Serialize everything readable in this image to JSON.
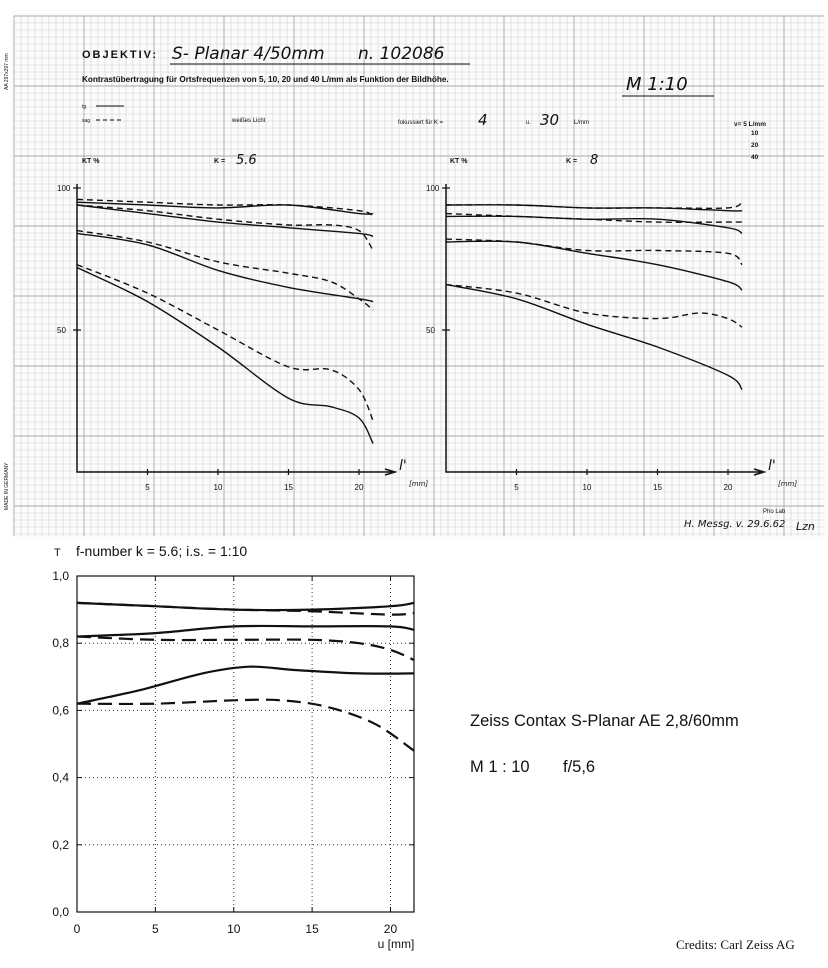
{
  "chart_data": [
    {
      "type": "line",
      "title": "OBJEKTIV:",
      "lens": "S- Planar 4/50mm",
      "serial": "n. 102086",
      "subtitle": "Kontrastübertragung für Ortsfrequenzen von 5, 10, 20 und 40 L/mm als Funktion der Bildhöhe.",
      "scale": "M 1:10",
      "legend": {
        "tg": "tg",
        "sag": "sag"
      },
      "light": "weißes Licht",
      "focus_label": "fokussiert für K =",
      "focus_k": "4",
      "focus_u": "u.",
      "focus_freq": "30",
      "focus_unit": "L/mm",
      "freq_header": "ν= 5 L/mm",
      "freq_values": [
        "10",
        "20",
        "40"
      ],
      "footer_lab": "Pho Lab",
      "footer_note": "H. Messg. v. 29.6.62",
      "signature": "Lzn",
      "panels": [
        {
          "ylabel": "KT %",
          "k_label": "K =",
          "k_value": "5.6",
          "xlabel": "l'",
          "xunit": "[mm]",
          "xlim": [
            0,
            21.5
          ],
          "ylim": [
            0,
            100
          ],
          "xticks": [
            5,
            10,
            15,
            20
          ],
          "yticks": [
            50,
            100
          ],
          "series": [
            {
              "style": "solid",
              "x": [
                0,
                5,
                10,
                15,
                20,
                21
              ],
              "y": [
                95,
                94,
                93,
                94,
                91,
                91
              ]
            },
            {
              "style": "dashed",
              "x": [
                0,
                5,
                10,
                15,
                20,
                21
              ],
              "y": [
                96,
                95,
                94,
                94,
                92,
                90
              ]
            },
            {
              "style": "solid",
              "x": [
                0,
                5,
                10,
                15,
                20,
                21
              ],
              "y": [
                94,
                91,
                88,
                86,
                84,
                83
              ]
            },
            {
              "style": "dashed",
              "x": [
                0,
                5,
                10,
                15,
                18,
                20,
                21
              ],
              "y": [
                94,
                92,
                89,
                87,
                87,
                85,
                78
              ]
            },
            {
              "style": "solid",
              "x": [
                0,
                5,
                10,
                15,
                20,
                21
              ],
              "y": [
                84,
                80,
                71,
                65,
                61,
                60
              ]
            },
            {
              "style": "dashed",
              "x": [
                0,
                5,
                10,
                15,
                18,
                20,
                21
              ],
              "y": [
                85,
                81,
                74,
                70,
                67,
                61,
                57
              ]
            },
            {
              "style": "solid",
              "x": [
                0,
                5,
                10,
                15,
                18,
                20,
                21
              ],
              "y": [
                72,
                60,
                44,
                26,
                23,
                19,
                10
              ]
            },
            {
              "style": "dashed",
              "x": [
                0,
                5,
                10,
                15,
                18,
                20,
                21
              ],
              "y": [
                73,
                63,
                50,
                37,
                36,
                29,
                18
              ]
            }
          ]
        },
        {
          "ylabel": "KT %",
          "k_label": "K =",
          "k_value": "8",
          "xlabel": "l'",
          "xunit": "[mm]",
          "xlim": [
            0,
            21.5
          ],
          "ylim": [
            0,
            100
          ],
          "xticks": [
            5,
            10,
            15,
            20
          ],
          "yticks": [
            50,
            100
          ],
          "series": [
            {
              "style": "solid",
              "x": [
                0,
                5,
                10,
                15,
                20,
                21
              ],
              "y": [
                94,
                94,
                93,
                93,
                92,
                92
              ]
            },
            {
              "style": "dashed",
              "x": [
                0,
                5,
                10,
                15,
                20,
                21
              ],
              "y": [
                94,
                94,
                93,
                93,
                93,
                95
              ]
            },
            {
              "style": "solid",
              "x": [
                0,
                5,
                10,
                15,
                20,
                21
              ],
              "y": [
                90,
                90,
                89,
                89,
                86,
                84
              ]
            },
            {
              "style": "dashed",
              "x": [
                0,
                5,
                10,
                15,
                20,
                21
              ],
              "y": [
                91,
                90,
                89,
                88,
                88,
                88
              ]
            },
            {
              "style": "solid",
              "x": [
                0,
                5,
                10,
                15,
                20,
                21
              ],
              "y": [
                81,
                81,
                77,
                73,
                67,
                64
              ]
            },
            {
              "style": "dashed",
              "x": [
                0,
                5,
                10,
                15,
                20,
                21
              ],
              "y": [
                82,
                81,
                78,
                78,
                77,
                73
              ]
            },
            {
              "style": "solid",
              "x": [
                0,
                5,
                10,
                15,
                20,
                21
              ],
              "y": [
                66,
                61,
                52,
                44,
                34,
                29
              ]
            },
            {
              "style": "dashed",
              "x": [
                0,
                5,
                10,
                15,
                18,
                20,
                21
              ],
              "y": [
                66,
                63,
                56,
                54,
                56,
                54,
                51
              ]
            }
          ]
        }
      ]
    },
    {
      "type": "line",
      "title": "f-number k = 5.6; i.s. = 1:10",
      "ylabel": "T",
      "xlabel": "u [mm]",
      "xlim": [
        0,
        21.5
      ],
      "ylim": [
        0,
        1.0
      ],
      "xticks": [
        "0",
        "5",
        "10",
        "15",
        "20"
      ],
      "yticks": [
        "0,0",
        "0,2",
        "0,4",
        "0,6",
        "0,8",
        "1,0"
      ],
      "series": [
        {
          "style": "solid",
          "x": [
            0,
            5,
            10,
            15,
            20,
            21.5
          ],
          "y": [
            0.92,
            0.91,
            0.9,
            0.9,
            0.91,
            0.92
          ]
        },
        {
          "style": "dashed",
          "x": [
            0,
            5,
            10,
            15,
            20,
            21.5
          ],
          "y": [
            0.92,
            0.91,
            0.9,
            0.895,
            0.885,
            0.89
          ]
        },
        {
          "style": "solid",
          "x": [
            0,
            5,
            10,
            15,
            20,
            21.5
          ],
          "y": [
            0.82,
            0.83,
            0.85,
            0.85,
            0.85,
            0.84
          ]
        },
        {
          "style": "dashed",
          "x": [
            0,
            5,
            10,
            15,
            18,
            20,
            21.5
          ],
          "y": [
            0.82,
            0.81,
            0.81,
            0.81,
            0.8,
            0.78,
            0.75
          ]
        },
        {
          "style": "solid",
          "x": [
            0,
            4,
            8,
            11,
            14,
            18,
            21.5
          ],
          "y": [
            0.62,
            0.66,
            0.71,
            0.73,
            0.72,
            0.71,
            0.71
          ]
        },
        {
          "style": "dashed",
          "x": [
            0,
            5,
            10,
            13,
            16,
            19,
            21.5
          ],
          "y": [
            0.62,
            0.62,
            0.63,
            0.63,
            0.61,
            0.56,
            0.48
          ]
        }
      ]
    }
  ],
  "annotation": {
    "lens_name": "Zeiss Contax S-Planar AE 2,8/60mm",
    "scale": "M 1 : 10",
    "aperture": "f/5,6"
  },
  "credits": "Credits: Carl Zeiss AG",
  "margin_notes": [
    "AA 297x297 mm",
    "MADE IN GERMANY"
  ]
}
